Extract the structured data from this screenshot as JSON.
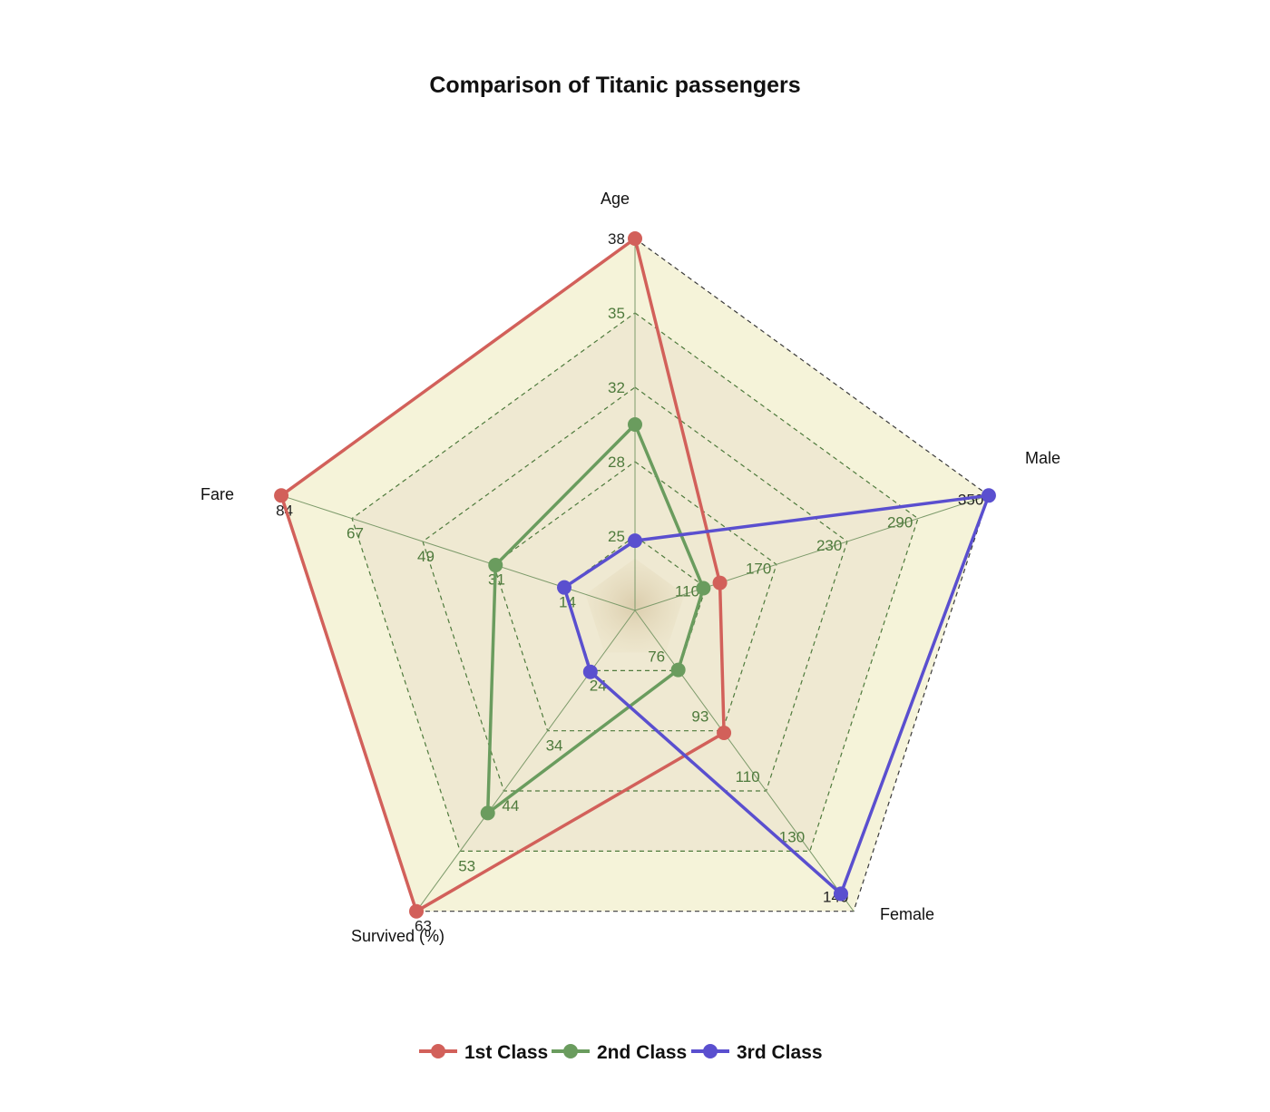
{
  "chart_data": {
    "type": "radar",
    "title": "Comparison of Titanic passengers",
    "axes": [
      {
        "name": "Age",
        "ticks": [
          "25",
          "28",
          "32",
          "35",
          "38"
        ],
        "range": [
          22,
          38
        ]
      },
      {
        "name": "Male",
        "ticks": [
          "110",
          "170",
          "230",
          "290",
          "350"
        ],
        "range": [
          50,
          350
        ]
      },
      {
        "name": "Female",
        "ticks": [
          "76",
          "93",
          "110",
          "130",
          "140"
        ],
        "range": [
          59,
          145
        ]
      },
      {
        "name": "Survived (%)",
        "ticks": [
          "24",
          "34",
          "44",
          "53",
          "63"
        ],
        "range": [
          14,
          63
        ]
      },
      {
        "name": "Fare",
        "ticks": [
          "14",
          "31",
          "49",
          "67",
          "84"
        ],
        "range": [
          -3.5,
          84
        ]
      }
    ],
    "series": [
      {
        "name": "1st Class",
        "color": "#d2605a",
        "values": [
          38,
          122,
          94,
          63,
          84
        ]
      },
      {
        "name": "2nd Class",
        "color": "#6a9c5e",
        "values": [
          30,
          108,
          76,
          47,
          31
        ]
      },
      {
        "name": "3rd Class",
        "color": "#5a4fcf",
        "values": [
          25,
          350,
          140,
          24,
          14
        ]
      }
    ],
    "grid": true,
    "legend": "bottom-center"
  }
}
